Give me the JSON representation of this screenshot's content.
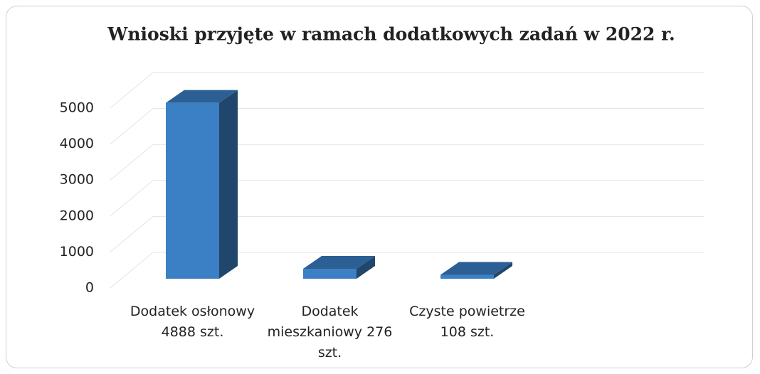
{
  "chart_data": {
    "type": "bar3d",
    "title": "Wnioski przyjęte w ramach dodatkowych zadań w 2022 r.",
    "categories": [
      "Dodatek osłonowy 4888 szt.",
      "Dodatek mieszkaniowy 276 szt.",
      "Czyste powietrze 108 szt."
    ],
    "values": [
      4888,
      276,
      108
    ],
    "color": "#3b7fc4",
    "ylim": [
      0,
      5000
    ],
    "yticks": [
      0,
      1000,
      2000,
      3000,
      4000,
      5000
    ],
    "grid": true
  }
}
